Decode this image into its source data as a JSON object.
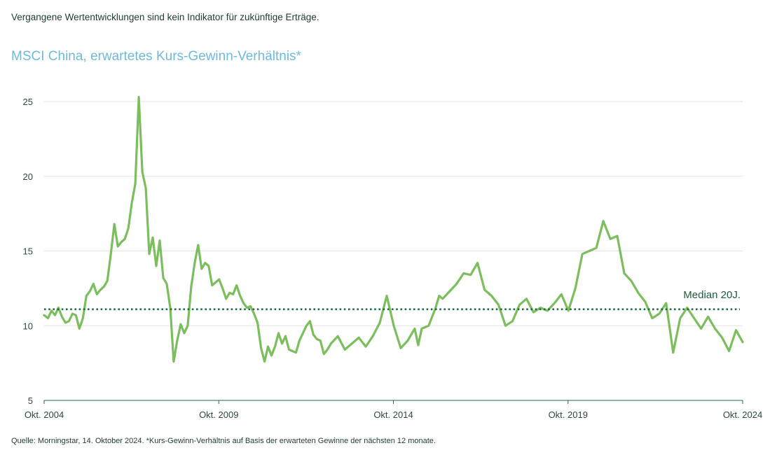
{
  "disclaimer": "Vergangene Wertentwicklungen sind kein Indikator für zukünftige Erträge.",
  "footnote": "Quelle: Morningstar, 14. Oktober 2024. *Kurs-Gewinn-Verhältnis auf Basis der erwarteten Gewinne der nächsten 12 monate.",
  "colors": {
    "line": "#7cbd5e",
    "median": "#1e6b46",
    "title": "#6fbad6",
    "grid": "#e3e3e3",
    "axis": "#1e6b46"
  },
  "chart_data": {
    "type": "line",
    "title": "MSCI China, erwartetes Kurs-Gewinn-Verhältnis*",
    "xlabel": "",
    "ylabel": "",
    "xlim": [
      2004.79,
      2024.79
    ],
    "ylim": [
      5,
      25
    ],
    "y_ticks": [
      5,
      10,
      15,
      20,
      25
    ],
    "y_tick_labels": [
      "5",
      "10",
      "15",
      "20",
      "25"
    ],
    "x_ticks": [
      2004.79,
      2009.79,
      2014.79,
      2019.79,
      2024.79
    ],
    "x_tick_labels": [
      "Okt. 2004",
      "Okt. 2009",
      "Okt. 2014",
      "Okt. 2019",
      "Okt. 2024"
    ],
    "grid": true,
    "median": {
      "label": "Median 20J.",
      "value": 11.1
    },
    "series": [
      {
        "name": "MSCI China, erwartetes KGV",
        "x": [
          2004.79,
          2004.9,
          2005.0,
          2005.1,
          2005.2,
          2005.3,
          2005.4,
          2005.5,
          2005.6,
          2005.7,
          2005.8,
          2005.9,
          2006.0,
          2006.1,
          2006.2,
          2006.3,
          2006.4,
          2006.5,
          2006.6,
          2006.7,
          2006.8,
          2006.9,
          2007.0,
          2007.1,
          2007.2,
          2007.3,
          2007.4,
          2007.5,
          2007.6,
          2007.7,
          2007.8,
          2007.9,
          2008.0,
          2008.1,
          2008.2,
          2008.3,
          2008.4,
          2008.5,
          2008.6,
          2008.7,
          2008.8,
          2008.9,
          2009.0,
          2009.1,
          2009.2,
          2009.3,
          2009.4,
          2009.5,
          2009.6,
          2009.7,
          2009.8,
          2009.9,
          2010.0,
          2010.1,
          2010.2,
          2010.3,
          2010.4,
          2010.5,
          2010.6,
          2010.7,
          2010.8,
          2010.9,
          2011.0,
          2011.1,
          2011.2,
          2011.3,
          2011.4,
          2011.5,
          2011.6,
          2011.7,
          2011.8,
          2011.9,
          2012.0,
          2012.1,
          2012.2,
          2012.3,
          2012.4,
          2012.5,
          2012.6,
          2012.7,
          2012.8,
          2012.9,
          2013.0,
          2013.2,
          2013.4,
          2013.6,
          2013.8,
          2014.0,
          2014.2,
          2014.4,
          2014.6,
          2014.8,
          2015.0,
          2015.2,
          2015.4,
          2015.5,
          2015.6,
          2015.8,
          2016.0,
          2016.1,
          2016.2,
          2016.4,
          2016.6,
          2016.8,
          2017.0,
          2017.2,
          2017.4,
          2017.6,
          2017.8,
          2018.0,
          2018.2,
          2018.4,
          2018.6,
          2018.8,
          2019.0,
          2019.2,
          2019.4,
          2019.6,
          2019.8,
          2020.0,
          2020.2,
          2020.4,
          2020.6,
          2020.8,
          2021.0,
          2021.2,
          2021.4,
          2021.6,
          2021.8,
          2022.0,
          2022.2,
          2022.4,
          2022.6,
          2022.8,
          2023.0,
          2023.2,
          2023.4,
          2023.6,
          2023.8,
          2024.0,
          2024.2,
          2024.4,
          2024.6,
          2024.79
        ],
        "values": [
          10.7,
          10.5,
          11.0,
          10.7,
          11.2,
          10.6,
          10.2,
          10.3,
          10.8,
          10.7,
          9.8,
          10.5,
          12.0,
          12.3,
          12.8,
          12.1,
          12.4,
          12.6,
          13.0,
          14.8,
          16.8,
          15.3,
          15.6,
          15.8,
          16.5,
          18.2,
          19.5,
          25.3,
          20.3,
          19.2,
          14.8,
          15.9,
          14.0,
          15.7,
          13.2,
          12.8,
          11.2,
          7.6,
          9.0,
          10.1,
          9.5,
          10.0,
          12.6,
          14.2,
          15.4,
          13.8,
          14.2,
          14.0,
          12.7,
          12.9,
          13.1,
          12.5,
          11.8,
          12.2,
          12.1,
          12.7,
          12.0,
          11.5,
          11.2,
          11.3,
          10.8,
          10.2,
          8.5,
          7.6,
          8.6,
          8.0,
          8.6,
          9.5,
          8.8,
          9.3,
          8.4,
          8.3,
          8.2,
          9.0,
          9.5,
          10.0,
          10.3,
          9.4,
          9.1,
          9.0,
          8.1,
          8.4,
          8.8,
          9.3,
          8.4,
          8.8,
          9.2,
          8.6,
          9.3,
          10.2,
          12.0,
          10.0,
          8.5,
          9.0,
          9.8,
          8.7,
          9.8,
          10.0,
          11.2,
          12.0,
          11.8,
          12.3,
          12.8,
          13.5,
          13.4,
          14.2,
          12.4,
          12.0,
          11.4,
          10.0,
          10.3,
          11.4,
          11.8,
          10.9,
          11.2,
          11.0,
          11.5,
          12.1,
          11.0,
          12.5,
          14.8,
          15.0,
          15.2,
          17.0,
          15.8,
          16.0,
          13.5,
          13.0,
          12.2,
          11.6,
          10.5,
          10.8,
          11.5,
          8.2,
          10.5,
          11.2,
          10.5,
          9.8,
          10.6,
          9.8,
          9.2,
          8.3,
          9.7,
          8.9
        ]
      }
    ]
  }
}
